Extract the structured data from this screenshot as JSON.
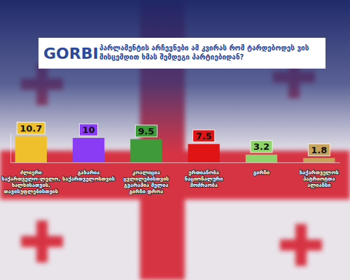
{
  "chart_data": {
    "type": "bar",
    "title": "პარლამენტის არჩევნები ამ კვირას რომ ტარდებოდეს ვის მისცემდით ხმას შემდეგი პარტიებიდან?",
    "annotations": [
      "GORBI"
    ],
    "categories": [
      "ძლიერი საქართველო-ლელო, ხალხისათვის, თავისუფლებისთვის",
      "გახარია საქართველოსთვის",
      "კოალიცია ცვლილებისთვის გვარამია მელია გირჩი დროა",
      "ერთიანობა ნაციონალური მოძრაობა",
      "გირჩი",
      "საქართველოს პატრიოტთა ალიანსი"
    ],
    "values": [
      10.7,
      10,
      9.5,
      7.5,
      3.2,
      1.8
    ],
    "colors": [
      "#f0c02c",
      "#8a3cf5",
      "#3f9a3a",
      "#e01414",
      "#8fd36b",
      "#c9a35a"
    ],
    "ylim": [
      0,
      12
    ],
    "yticks": [],
    "data_labels": true,
    "tick_labels": "x",
    "grid": false
  }
}
